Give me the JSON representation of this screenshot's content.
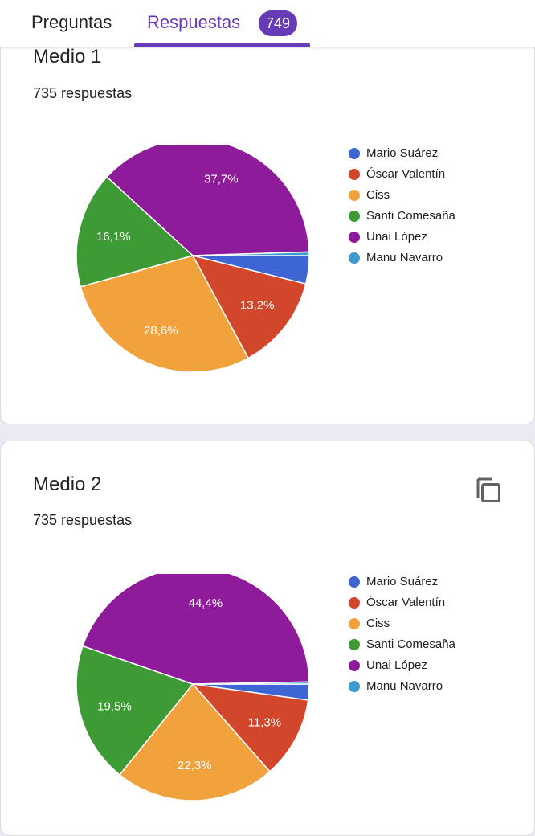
{
  "tabs": {
    "preguntas": "Preguntas",
    "respuestas": "Respuestas",
    "respuestas_count": "749"
  },
  "colors": {
    "accent": "#673ab7",
    "series": [
      "#3d66d4",
      "#d2472c",
      "#f2a23d",
      "#3d9a35",
      "#8e1c9a",
      "#3e9bcf"
    ]
  },
  "icons": {
    "copy": "copy-icon"
  },
  "cards": [
    {
      "title": "Medio 1",
      "count": "735 respuestas"
    },
    {
      "title": "Medio 2",
      "count": "735 respuestas"
    }
  ],
  "chart_data": [
    {
      "type": "pie",
      "title": "Medio 1",
      "categories": [
        "Mario Suárez",
        "Óscar Valentín",
        "Ciss",
        "Santi Comesaña",
        "Unai López",
        "Manu Navarro"
      ],
      "values": [
        3.9,
        13.2,
        28.6,
        16.1,
        37.7,
        0.5
      ],
      "labels": [
        "",
        "13,2%",
        "28,6%",
        "16,1%",
        "37,7%",
        ""
      ],
      "legend": "right"
    },
    {
      "type": "pie",
      "title": "Medio 2",
      "categories": [
        "Mario Suárez",
        "Óscar Valentín",
        "Ciss",
        "Santi Comesaña",
        "Unai López",
        "Manu Navarro"
      ],
      "values": [
        2.2,
        11.3,
        22.3,
        19.5,
        44.4,
        0.3
      ],
      "labels": [
        "",
        "11,3%",
        "22,3%",
        "19,5%",
        "44,4%",
        ""
      ],
      "legend": "right"
    }
  ]
}
